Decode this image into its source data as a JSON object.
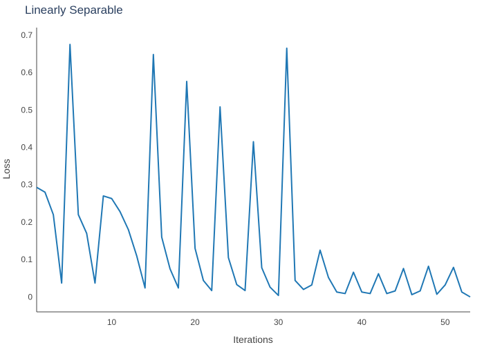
{
  "chart_data": {
    "type": "line",
    "title": "Linearly Separable",
    "xlabel": "Iterations",
    "ylabel": "Loss",
    "xlim": [
      1,
      53
    ],
    "ylim": [
      -0.04,
      0.72
    ],
    "xticks": [
      10,
      20,
      30,
      40,
      50
    ],
    "yticks": [
      0,
      0.1,
      0.2,
      0.3,
      0.4,
      0.5,
      0.6,
      0.7
    ],
    "ytick_labels": [
      "0",
      "0.1",
      "0.2",
      "0.3",
      "0.4",
      "0.5",
      "0.6",
      "0.7"
    ],
    "grid": false,
    "legend": "none",
    "series": [
      {
        "color": "#1f77b4",
        "x": [
          1,
          2,
          3,
          4,
          5,
          6,
          7,
          8,
          9,
          10,
          11,
          12,
          13,
          14,
          15,
          16,
          17,
          18,
          19,
          20,
          21,
          22,
          23,
          24,
          25,
          26,
          27,
          28,
          29,
          30,
          31,
          32,
          33,
          34,
          35,
          36,
          37,
          38,
          39,
          40,
          41,
          42,
          43,
          44,
          45,
          46,
          47,
          48,
          49,
          50,
          51,
          52,
          53
        ],
        "y": [
          0.293,
          0.28,
          0.22,
          0.037,
          0.675,
          0.22,
          0.17,
          0.037,
          0.27,
          0.263,
          0.228,
          0.18,
          0.11,
          0.024,
          0.648,
          0.16,
          0.075,
          0.024,
          0.576,
          0.13,
          0.044,
          0.017,
          0.508,
          0.105,
          0.033,
          0.017,
          0.415,
          0.078,
          0.026,
          0.004,
          0.665,
          0.044,
          0.02,
          0.032,
          0.125,
          0.052,
          0.013,
          0.009,
          0.066,
          0.013,
          0.009,
          0.062,
          0.009,
          0.016,
          0.076,
          0.006,
          0.016,
          0.082,
          0.007,
          0.032,
          0.079,
          0.013,
          0.0
        ]
      }
    ]
  }
}
